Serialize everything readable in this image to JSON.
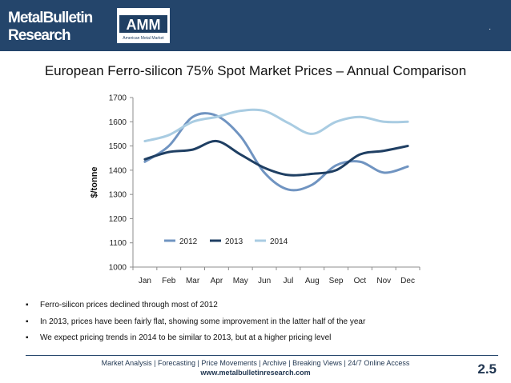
{
  "header": {
    "brand_line1": "MetalBulletin",
    "brand_line2": "Research",
    "partner_logo_text": "AMM",
    "partner_tagline": "American Metal Market",
    "dot": "."
  },
  "chart_data": {
    "type": "line",
    "title": "European Ferro-silicon 75% Spot Market Prices – Annual Comparison",
    "xlabel": "",
    "ylabel": "$/tonne",
    "categories": [
      "Jan",
      "Feb",
      "Mar",
      "Apr",
      "May",
      "Jun",
      "Jul",
      "Aug",
      "Sep",
      "Oct",
      "Nov",
      "Dec"
    ],
    "ylim": [
      1000,
      1700
    ],
    "yticks": [
      1000,
      1100,
      1200,
      1300,
      1400,
      1500,
      1600,
      1700
    ],
    "grid": false,
    "legend_position": "bottom-inside",
    "series": [
      {
        "name": "2012",
        "color": "#7094c1",
        "values": [
          1435,
          1500,
          1620,
          1625,
          1540,
          1390,
          1320,
          1340,
          1420,
          1435,
          1390,
          1415
        ]
      },
      {
        "name": "2013",
        "color": "#1f3f63",
        "values": [
          1445,
          1475,
          1485,
          1520,
          1465,
          1410,
          1380,
          1385,
          1400,
          1465,
          1480,
          1500
        ]
      },
      {
        "name": "2014",
        "color": "#a9cce2",
        "values": [
          1520,
          1545,
          1600,
          1620,
          1645,
          1645,
          1595,
          1550,
          1600,
          1620,
          1600,
          1600
        ]
      }
    ]
  },
  "bullets": [
    "Ferro-silicon prices declined through most of 2012",
    "In 2013, prices have been fairly flat, showing some improvement in the latter half of the year",
    "We expect pricing trends in 2014 to be similar to 2013, but at a higher pricing level"
  ],
  "footer": {
    "nav": "Market Analysis | Forecasting | Price Movements | Archive | Breaking Views | 24/7 Online Access",
    "url": "www.metalbulletinresearch.com",
    "page_number": "2.5"
  }
}
